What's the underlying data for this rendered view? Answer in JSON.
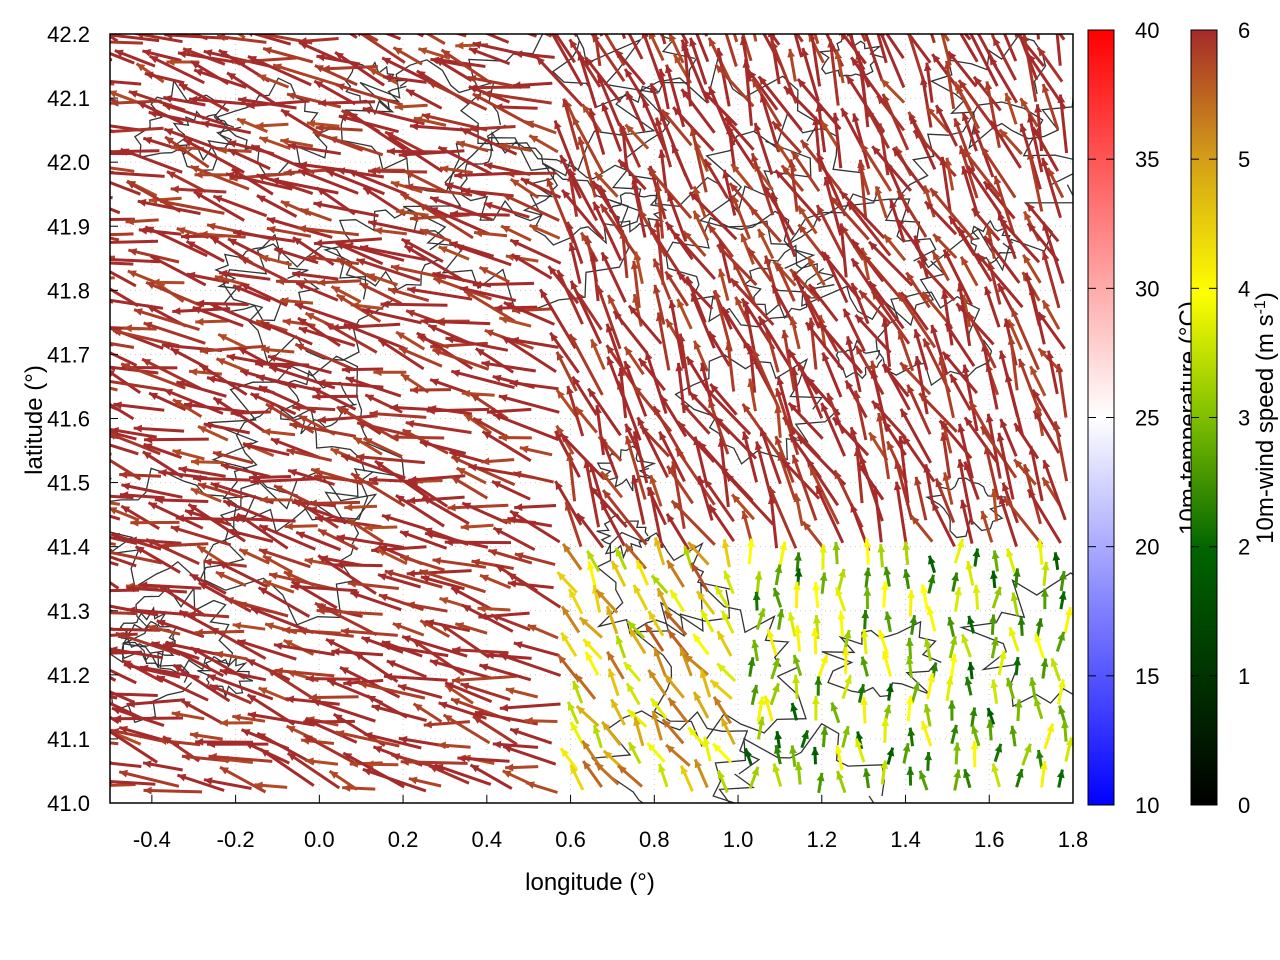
{
  "chart_data": {
    "type": "vector field with contours and colorbars",
    "xlabel": "longitude (°)",
    "ylabel": "latitude (°)",
    "xlim": [
      -0.5,
      1.8
    ],
    "ylim": [
      41.0,
      42.2
    ],
    "xticks": [
      "-0.4",
      "-0.2",
      "0.0",
      "0.2",
      "0.4",
      "0.6",
      "0.8",
      "1.0",
      "1.2",
      "1.4",
      "1.6",
      "1.8"
    ],
    "yticks": [
      "41.0",
      "41.1",
      "41.2",
      "41.3",
      "41.4",
      "41.5",
      "41.6",
      "41.7",
      "41.8",
      "41.9",
      "42.0",
      "42.1",
      "42.2"
    ],
    "grid": true,
    "contours": "terrain elevation isolines (dark grey)",
    "wind_field": {
      "description": "10 m wind arrows colored by speed; strong (>=6 m/s) mostly towards west/north-west over the west and north, weaker (2-5 m/s) northward flow in the south-east",
      "regions": [
        {
          "name": "west",
          "lon": [
            -0.5,
            0.6
          ],
          "lat": [
            41.0,
            42.2
          ],
          "dir_deg": 165,
          "speed": 6
        },
        {
          "name": "north",
          "lon": [
            0.6,
            1.6
          ],
          "lat": [
            41.6,
            42.2
          ],
          "dir_deg": 115,
          "speed": 6
        },
        {
          "name": "south-east",
          "lon": [
            1.0,
            1.8
          ],
          "lat": [
            41.0,
            41.4
          ],
          "dir_deg": 90,
          "speed": 3
        },
        {
          "name": "south-central",
          "lon": [
            0.6,
            1.0
          ],
          "lat": [
            41.0,
            41.4
          ],
          "dir_deg": 120,
          "speed": 4.5
        }
      ]
    },
    "colorbars": [
      {
        "label": "10m-temperature (°C)",
        "min": 10,
        "max": 40,
        "ticks": [
          "10",
          "15",
          "20",
          "25",
          "30",
          "35",
          "40"
        ],
        "colors": [
          "#0000ff",
          "#ffffff",
          "#ff0000"
        ]
      },
      {
        "label": "10m-wind speed (m s",
        "label_sup": "-1",
        "label_end": ")",
        "min": 0,
        "max": 6,
        "ticks": [
          "0",
          "1",
          "2",
          "3",
          "4",
          "5",
          "6"
        ],
        "colors": [
          "#000000",
          "#006400",
          "#7fbf00",
          "#ffff00",
          "#d4a017",
          "#a52a2a"
        ]
      }
    ]
  }
}
